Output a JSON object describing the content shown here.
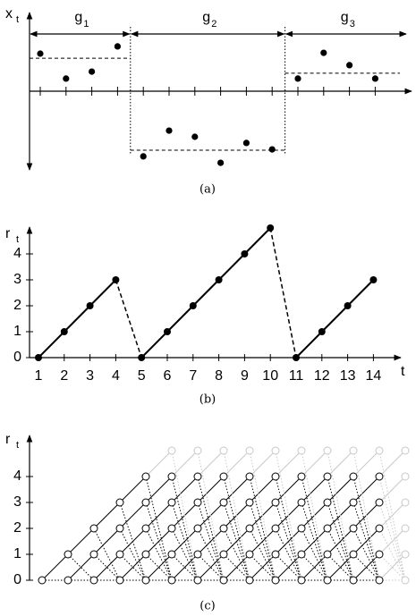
{
  "chart_data": [
    {
      "type": "segments",
      "ylabel": "x",
      "ylabel_sub": "t",
      "caption": "(a)",
      "color": "#000000",
      "groups": [
        {
          "label": "g",
          "subscript": "1",
          "values": [
            1.4,
            0.47,
            0.73,
            1.67
          ],
          "mean": 1.23
        },
        {
          "label": "g",
          "subscript": "2",
          "values": [
            -2.43,
            -1.47,
            -1.7,
            -2.67,
            -1.93,
            -2.17
          ],
          "mean": -2.2
        },
        {
          "label": "g",
          "subscript": "3",
          "values": [
            0.47,
            1.43,
            0.97,
            0.47
          ],
          "mean": 0.67
        }
      ],
      "ylim": [
        -3,
        2.9
      ]
    },
    {
      "type": "line",
      "ylabel": "r",
      "ylabel_sub": "t",
      "xlabel": "t",
      "caption": "(b)",
      "color": "#000000",
      "x": [
        1,
        2,
        3,
        4,
        5,
        6,
        7,
        8,
        9,
        10,
        11,
        12,
        13,
        14
      ],
      "values": [
        0,
        1,
        2,
        3,
        0,
        1,
        2,
        3,
        4,
        5,
        0,
        1,
        2,
        3
      ],
      "ylim": [
        0,
        5
      ],
      "yticks": [
        0,
        1,
        2,
        3,
        4
      ]
    },
    {
      "type": "lattice",
      "ylabel": "r",
      "ylabel_sub": "t",
      "caption": "(c)",
      "columns": 15,
      "ylim": [
        0,
        5
      ],
      "yticks": [
        0,
        1,
        2,
        3,
        4
      ]
    }
  ]
}
